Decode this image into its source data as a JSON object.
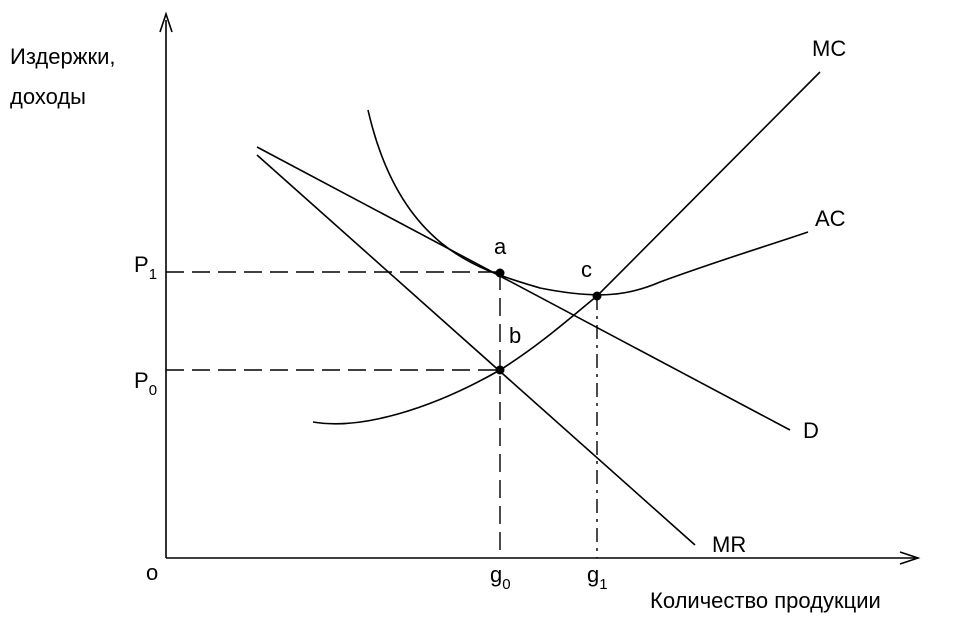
{
  "axes": {
    "y_label_line1": "Издержки,",
    "y_label_line2": "доходы",
    "x_label": "Количество продукции",
    "origin": "o"
  },
  "price_levels": {
    "p1_base": "P",
    "p1_sub": "1",
    "p0_base": "P",
    "p0_sub": "0"
  },
  "quantity_levels": {
    "g0_base": "g",
    "g0_sub": "0",
    "g1_base": "g",
    "g1_sub": "1"
  },
  "curves": {
    "mc": "MC",
    "ac": "AC",
    "d": "D",
    "mr": "MR"
  },
  "points": {
    "a": "a",
    "b": "b",
    "c": "c"
  }
}
